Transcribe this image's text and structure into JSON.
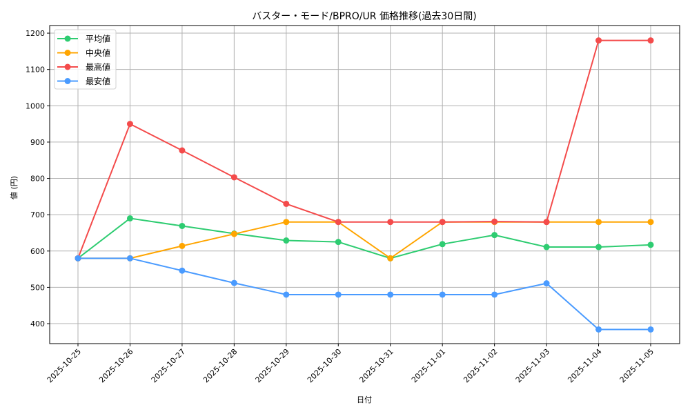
{
  "chart_data": {
    "type": "line",
    "title": "バスター・モード/BPRO/UR 価格推移(過去30日間)",
    "xlabel": "日付",
    "ylabel": "値 (円)",
    "categories": [
      "2025-10-25",
      "2025-10-26",
      "2025-10-27",
      "2025-10-28",
      "2025-10-29",
      "2025-10-30",
      "2025-10-31",
      "2025-11-01",
      "2025-11-02",
      "2025-11-03",
      "2025-11-04",
      "2025-11-05"
    ],
    "series": [
      {
        "name": "平均値",
        "color": "#2ecc71",
        "values": [
          580,
          690,
          669,
          648,
          629,
          625,
          580,
          619,
          644,
          611,
          611,
          617
        ]
      },
      {
        "name": "中央値",
        "color": "#ffa500",
        "values": [
          580,
          580,
          614,
          647,
          680,
          680,
          580,
          680,
          680,
          680,
          680,
          680
        ]
      },
      {
        "name": "最高値",
        "color": "#f44b4b",
        "values": [
          580,
          950,
          877,
          803,
          730,
          680,
          680,
          680,
          681,
          680,
          1180,
          1180
        ]
      },
      {
        "name": "最安値",
        "color": "#4a9bff",
        "values": [
          580,
          580,
          546,
          512,
          480,
          480,
          480,
          480,
          480,
          511,
          384,
          384
        ]
      }
    ],
    "yticks": [
      400,
      500,
      600,
      700,
      800,
      900,
      1000,
      1100,
      1200
    ],
    "ylim": [
      345,
      1221
    ],
    "grid": true,
    "legend_position": "upper left",
    "marker": "circle"
  }
}
